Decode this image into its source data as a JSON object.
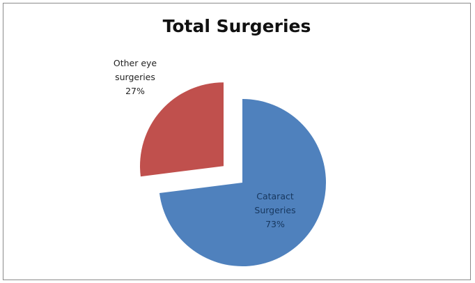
{
  "chart_data": {
    "type": "pie",
    "title": "Total Surgeries",
    "slices": [
      {
        "label_lines": [
          "Cataract",
          "Surgeries",
          "73%"
        ],
        "value": 73,
        "color": "#4f81bd",
        "label_color": "#17375e",
        "exploded": false
      },
      {
        "label_lines": [
          "Other eye",
          "surgeries",
          "27%"
        ],
        "value": 27,
        "color": "#c0504d",
        "label_color": "#222222",
        "exploded": true
      }
    ],
    "start_angle_deg": 0,
    "direction": "clockwise",
    "legend": "none"
  }
}
